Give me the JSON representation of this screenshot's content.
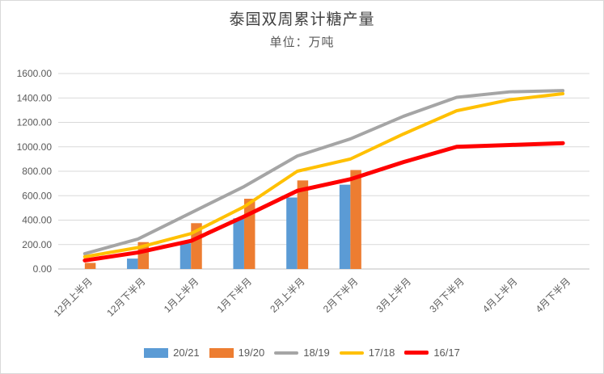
{
  "chart_data": {
    "type": "combo",
    "title": "泰国双周累计糖产量",
    "subtitle": "单位：万吨",
    "categories": [
      "12月上半月",
      "12月下半月",
      "1月上半月",
      "1月下半月",
      "2月上半月",
      "2月下半月",
      "3月上半月",
      "3月下半月",
      "4月上半月",
      "4月下半月"
    ],
    "series": [
      {
        "name": "20/21",
        "kind": "bar",
        "color": "#5B9BD5",
        "stroke_width": 0,
        "values": [
          0,
          85,
          210,
          415,
          585,
          690,
          null,
          null,
          null,
          null
        ]
      },
      {
        "name": "19/20",
        "kind": "bar",
        "color": "#ED7D31",
        "stroke_width": 0,
        "values": [
          50,
          220,
          375,
          575,
          725,
          810,
          null,
          null,
          null,
          null
        ]
      },
      {
        "name": "18/19",
        "kind": "line",
        "color": "#A5A5A5",
        "stroke_width": 4,
        "values": [
          125,
          245,
          460,
          675,
          925,
          1065,
          1250,
          1405,
          1450,
          1460
        ]
      },
      {
        "name": "17/18",
        "kind": "line",
        "color": "#FFC000",
        "stroke_width": 4,
        "values": [
          100,
          175,
          290,
          510,
          800,
          900,
          1105,
          1295,
          1385,
          1435
        ]
      },
      {
        "name": "16/17",
        "kind": "line",
        "color": "#FF0000",
        "stroke_width": 5,
        "values": [
          70,
          135,
          230,
          430,
          640,
          735,
          875,
          1000,
          1015,
          1030
        ]
      }
    ],
    "ylim": [
      0,
      1600
    ],
    "ytick_step": 200,
    "ytick_labels": [
      "0.00",
      "200.00",
      "400.00",
      "600.00",
      "800.00",
      "1000.00",
      "1200.00",
      "1400.00",
      "1600.00"
    ],
    "grid": true,
    "legend_position": "bottom",
    "colors": {
      "gridline": "#D9D9D9",
      "axis_line": "#BFBFBF",
      "tick_text": "#595959",
      "title_text": "#404040"
    }
  }
}
